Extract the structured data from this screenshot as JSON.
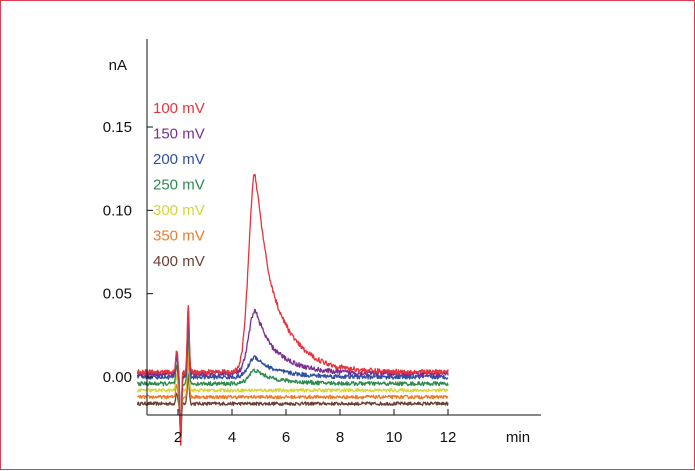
{
  "chart_data": {
    "type": "line",
    "title": "",
    "ylabel": "nA",
    "xlabel": "min",
    "x_ticks": [
      2,
      4,
      6,
      8,
      10,
      12
    ],
    "y_ticks": [
      0.15,
      0.1,
      0.05,
      0.0
    ],
    "y_tick_labels": [
      "0.15",
      "0.10",
      "0.05",
      "0.00"
    ],
    "xlim": [
      0.5,
      12
    ],
    "ylim": [
      -0.025,
      0.19
    ],
    "grid": false,
    "legend_position": "top-left",
    "series": [
      {
        "name": "100 mV",
        "color": "#e8323c",
        "offset": 0.003,
        "peak": 0.122,
        "spike": 0.04,
        "noise": 0.0015
      },
      {
        "name": "150 mV",
        "color": "#7a2e8e",
        "offset": 0.002,
        "peak": 0.04,
        "spike": 0.038,
        "noise": 0.0015
      },
      {
        "name": "200 mV",
        "color": "#2f4fa3",
        "offset": 0.0,
        "peak": 0.012,
        "spike": 0.034,
        "noise": 0.0013
      },
      {
        "name": "250 mV",
        "color": "#2e8a4e",
        "offset": -0.004,
        "peak": 0.004,
        "spike": 0.03,
        "noise": 0.0012
      },
      {
        "name": "300 mV",
        "color": "#d7d43a",
        "offset": -0.008,
        "peak": 0.0,
        "spike": 0.026,
        "noise": 0.001
      },
      {
        "name": "350 mV",
        "color": "#f07a2a",
        "offset": -0.012,
        "peak": 0.0,
        "spike": 0.022,
        "noise": 0.001
      },
      {
        "name": "400 mV",
        "color": "#6b3f32",
        "offset": -0.016,
        "peak": 0.0,
        "spike": 0.018,
        "noise": 0.001
      }
    ]
  }
}
